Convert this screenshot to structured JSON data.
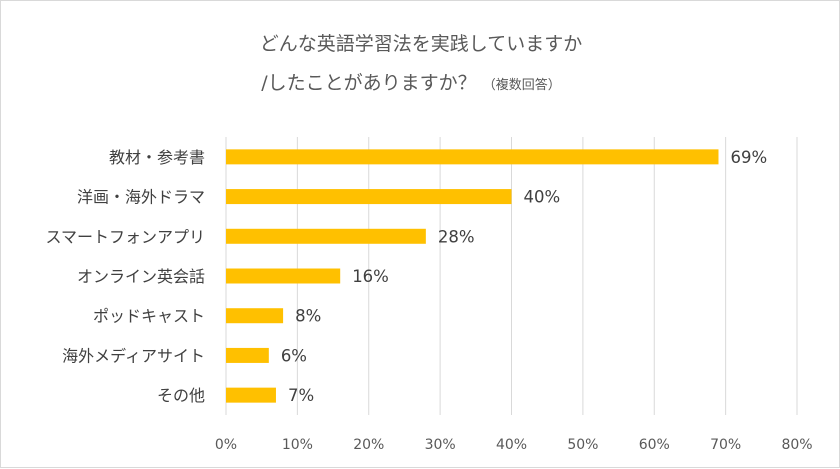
{
  "chart_data": {
    "type": "bar",
    "orientation": "horizontal",
    "title_line1": "どんな英語学習法を実践していますか",
    "title_line2": "/したことがありますか？",
    "title_note": "（複数回答）",
    "categories": [
      "教材・参考書",
      "洋画・海外ドラマ",
      "スマートフォンアプリ",
      "オンライン英会話",
      "ポッドキャスト",
      "海外メディアサイト",
      "その他"
    ],
    "values": [
      69,
      40,
      28,
      16,
      8,
      6,
      7
    ],
    "data_labels": [
      "69%",
      "40%",
      "28%",
      "16%",
      "8%",
      "6%",
      "7%"
    ],
    "xlim": [
      0,
      80
    ],
    "x_ticks": [
      "0%",
      "10%",
      "20%",
      "30%",
      "40%",
      "50%",
      "60%",
      "70%",
      "80%"
    ],
    "grid": true,
    "legend": "none",
    "bar_color": "#FFC000"
  }
}
